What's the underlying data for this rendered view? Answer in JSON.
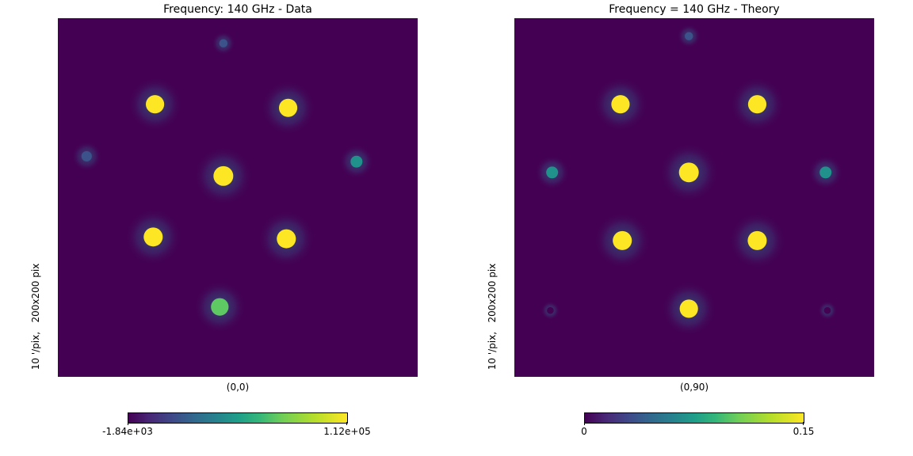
{
  "chart_data": [
    {
      "type": "heatmap",
      "title": "Frequency: 140 GHz - Data",
      "ylabel": "10 '/pix,   200x200 pix",
      "coordinate_label": "(0,0)",
      "colorbar": {
        "min_label": "-1.84e+03",
        "max_label": "1.12e+05",
        "colormap": "viridis"
      },
      "resolution": "200x200",
      "features": [
        {
          "kind": "spot",
          "x": 92,
          "y": 88,
          "value": 1.0
        },
        {
          "kind": "spot",
          "x": 54,
          "y": 48,
          "value": 0.9
        },
        {
          "kind": "spot",
          "x": 128,
          "y": 50,
          "value": 0.9
        },
        {
          "kind": "spot",
          "x": 53,
          "y": 122,
          "value": 0.95
        },
        {
          "kind": "spot",
          "x": 127,
          "y": 123,
          "value": 0.95
        },
        {
          "kind": "spot",
          "x": 90,
          "y": 161,
          "value": 0.85
        },
        {
          "kind": "spot",
          "x": 16,
          "y": 77,
          "value": 0.35
        },
        {
          "kind": "spot",
          "x": 166,
          "y": 80,
          "value": 0.45
        },
        {
          "kind": "spot",
          "x": 92,
          "y": 14,
          "value": 0.2
        }
      ]
    },
    {
      "type": "heatmap",
      "title": "Frequency = 140 GHz - Theory",
      "ylabel": "10 '/pix,   200x200 pix",
      "coordinate_label": "(0,90)",
      "colorbar": {
        "min_label": "0",
        "max_label": "0.15",
        "colormap": "viridis"
      },
      "resolution": "200x200",
      "features": [
        {
          "kind": "spot",
          "x": 97,
          "y": 86,
          "value": 1.0
        },
        {
          "kind": "spot",
          "x": 59,
          "y": 48,
          "value": 0.9
        },
        {
          "kind": "spot",
          "x": 135,
          "y": 48,
          "value": 0.9
        },
        {
          "kind": "spot",
          "x": 60,
          "y": 124,
          "value": 0.95
        },
        {
          "kind": "spot",
          "x": 135,
          "y": 124,
          "value": 0.95
        },
        {
          "kind": "spot",
          "x": 97,
          "y": 162,
          "value": 0.9
        },
        {
          "kind": "spot",
          "x": 21,
          "y": 86,
          "value": 0.45
        },
        {
          "kind": "spot",
          "x": 173,
          "y": 86,
          "value": 0.45
        },
        {
          "kind": "spot",
          "x": 97,
          "y": 10,
          "value": 0.2
        },
        {
          "kind": "spot",
          "x": 20,
          "y": 163,
          "value": 0.1
        },
        {
          "kind": "spot",
          "x": 174,
          "y": 163,
          "value": 0.1
        }
      ]
    }
  ]
}
